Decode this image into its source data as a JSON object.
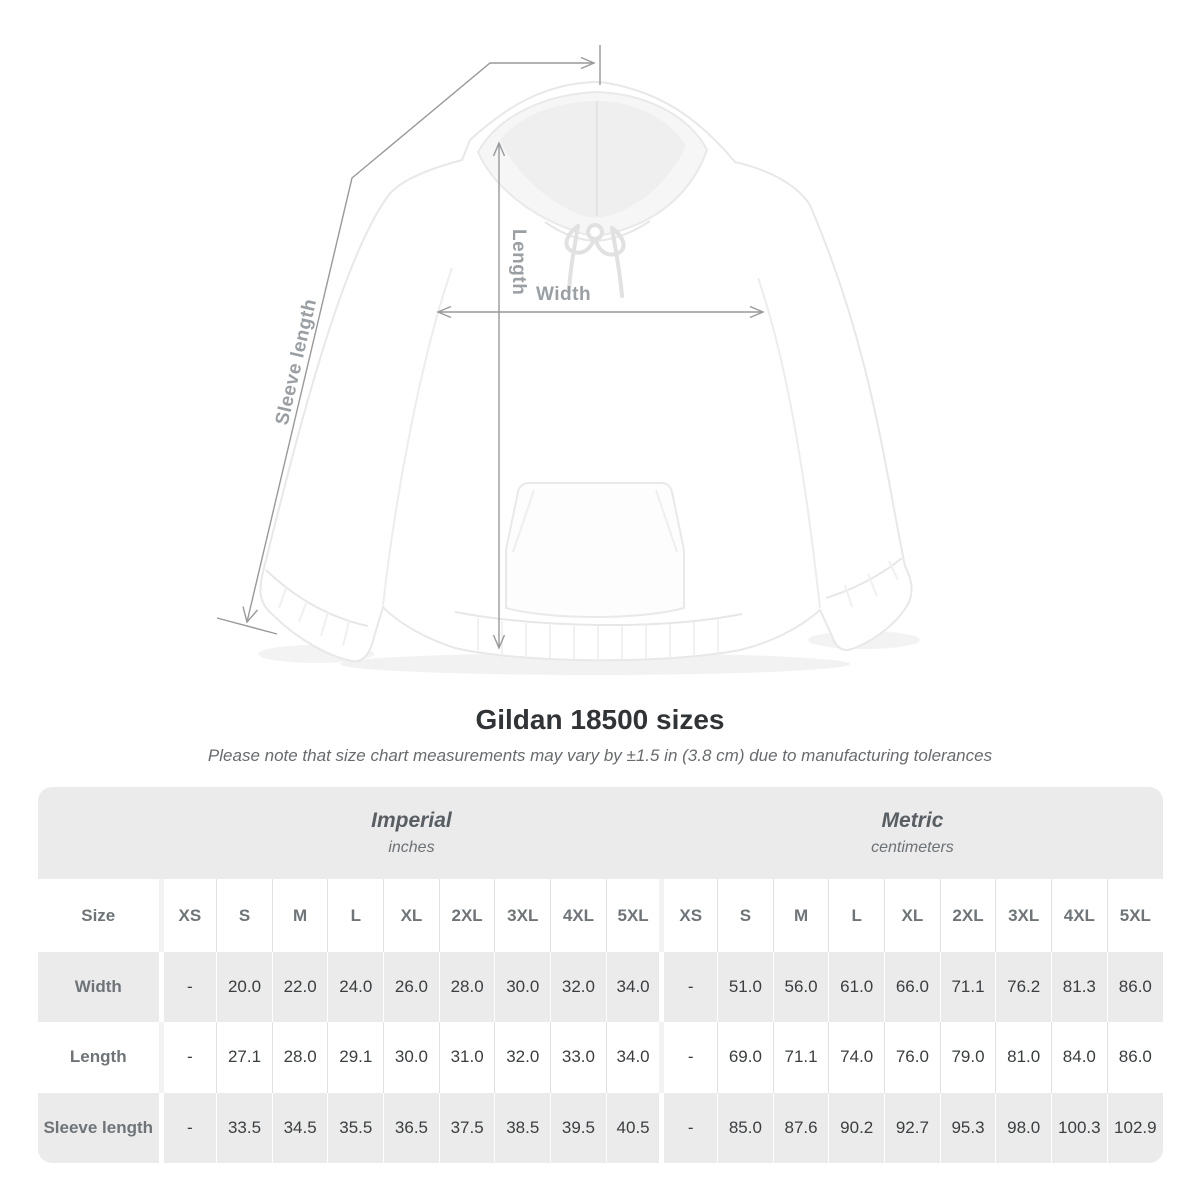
{
  "diagram": {
    "labels": {
      "length": "Length",
      "width": "Width",
      "sleeve": "Sleeve length"
    },
    "line_color": "#98999b",
    "label_color": "#9a9fa3"
  },
  "chart_data": {
    "type": "table",
    "title": "Gildan 18500 sizes",
    "note": "Please note that size chart measurements may vary by ±1.5 in (3.8 cm) due to manufacturing tolerances",
    "size_header": "Size",
    "sections": [
      {
        "label": "Imperial",
        "sublabel": "inches"
      },
      {
        "label": "Metric",
        "sublabel": "centimeters"
      }
    ],
    "sizes": [
      "XS",
      "S",
      "M",
      "L",
      "XL",
      "2XL",
      "3XL",
      "4XL",
      "5XL"
    ],
    "rows": [
      {
        "label": "Width",
        "imperial": [
          "-",
          "20.0",
          "22.0",
          "24.0",
          "26.0",
          "28.0",
          "30.0",
          "32.0",
          "34.0"
        ],
        "metric": [
          "-",
          "51.0",
          "56.0",
          "61.0",
          "66.0",
          "71.1",
          "76.2",
          "81.3",
          "86.0"
        ]
      },
      {
        "label": "Length",
        "imperial": [
          "-",
          "27.1",
          "28.0",
          "29.1",
          "30.0",
          "31.0",
          "32.0",
          "33.0",
          "34.0"
        ],
        "metric": [
          "-",
          "69.0",
          "71.1",
          "74.0",
          "76.0",
          "79.0",
          "81.0",
          "84.0",
          "86.0"
        ]
      },
      {
        "label": "Sleeve length",
        "imperial": [
          "-",
          "33.5",
          "34.5",
          "35.5",
          "36.5",
          "37.5",
          "38.5",
          "39.5",
          "40.5"
        ],
        "metric": [
          "-",
          "85.0",
          "87.6",
          "90.2",
          "92.7",
          "95.3",
          "98.0",
          "100.3",
          "102.9"
        ]
      }
    ],
    "colors": {
      "card_bg": "#ebebeb",
      "row_alt": "#ffffff",
      "value_text": "#3b3e40",
      "label_text": "#6e7478"
    }
  }
}
